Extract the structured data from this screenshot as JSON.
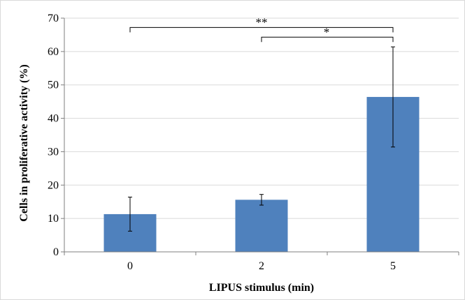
{
  "chart_data": {
    "type": "bar",
    "categories": [
      "0",
      "2",
      "5"
    ],
    "values": [
      11.3,
      15.6,
      46.4
    ],
    "error": [
      5.1,
      1.6,
      15.0
    ],
    "xlabel": "LIPUS stimulus (min)",
    "ylabel": "Cells in proliferative activity (%)",
    "ylim": [
      0,
      70
    ],
    "yticks": [
      0,
      10,
      20,
      30,
      40,
      50,
      60,
      70
    ],
    "grid": "horizontal",
    "bar_color": "#4f81bd",
    "grid_color": "#d9d9d9",
    "significance": [
      {
        "from": "0",
        "to": "5",
        "label": "**"
      },
      {
        "from": "2",
        "to": "5",
        "label": "*"
      }
    ]
  }
}
